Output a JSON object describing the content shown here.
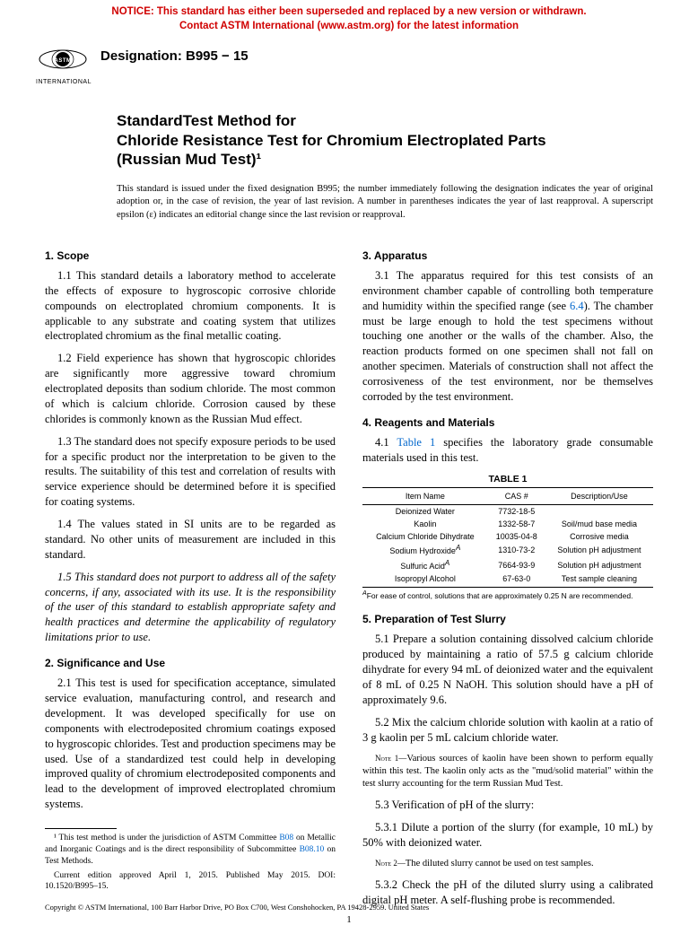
{
  "notice": {
    "line1": "NOTICE: This standard has either been superseded and replaced by a new version or withdrawn.",
    "line2": "Contact ASTM International (www.astm.org) for the latest information"
  },
  "logo_text": "INTERNATIONAL",
  "designation": "Designation: B995 − 15",
  "title": {
    "top": "StandardTest Method for",
    "main": "Chloride Resistance Test for Chromium Electroplated Parts",
    "sub": "(Russian Mud Test)¹"
  },
  "issuance": "This standard is issued under the fixed designation B995; the number immediately following the designation indicates the year of original adoption or, in the case of revision, the year of last revision. A number in parentheses indicates the year of last reapproval. A superscript epsilon (ε) indicates an editorial change since the last revision or reapproval.",
  "s1": {
    "h": "1. Scope",
    "p1": "1.1 This standard details a laboratory method to accelerate the effects of exposure to hygroscopic corrosive chloride compounds on electroplated chromium components. It is applicable to any substrate and coating system that utilizes electroplated chromium as the final metallic coating.",
    "p2": "1.2 Field experience has shown that hygroscopic chlorides are significantly more aggressive toward chromium electroplated deposits than sodium chloride. The most common of which is calcium chloride. Corrosion caused by these chlorides is commonly known as the Russian Mud effect.",
    "p3": "1.3 The standard does not specify exposure periods to be used for a specific product nor the interpretation to be given to the results. The suitability of this test and correlation of results with service experience should be determined before it is specified for coating systems.",
    "p4": "1.4 The values stated in SI units are to be regarded as standard. No other units of measurement are included in this standard.",
    "p5": "1.5 This standard does not purport to address all of the safety concerns, if any, associated with its use. It is the responsibility of the user of this standard to establish appropriate safety and health practices and determine the applicability of regulatory limitations prior to use."
  },
  "s2": {
    "h": "2. Significance and Use",
    "p1": "2.1 This test is used for specification acceptance, simulated service evaluation, manufacturing control, and research and development. It was developed specifically for use on components with electrodeposited chromium coatings exposed to hygroscopic chlorides. Test and production specimens may be used. Use of a standardized test could help in developing improved quality of chromium electrodeposited components and lead to the development of improved electroplated chromium systems."
  },
  "s3": {
    "h": "3. Apparatus",
    "p1_a": "3.1 The apparatus required for this test consists of an environment chamber capable of controlling both temperature and humidity within the specified range (see ",
    "p1_ref": "6.4",
    "p1_b": "). The chamber must be large enough to hold the test specimens without touching one another or the walls of the chamber. Also, the reaction products formed on one specimen shall not fall on another specimen. Materials of construction shall not affect the corrosiveness of the test environment, nor be themselves corroded by the test environment."
  },
  "s4": {
    "h": "4. Reagents and Materials",
    "p1_a": "4.1 ",
    "p1_ref": "Table 1",
    "p1_b": " specifies the laboratory grade consumable materials used in this test.",
    "table_title": "TABLE 1",
    "cols": [
      "Item Name",
      "CAS #",
      "Description/Use"
    ],
    "rows": [
      [
        "Deionized Water",
        "7732-18-5",
        ""
      ],
      [
        "Kaolin",
        "1332-58-7",
        "Soil/mud base media"
      ],
      [
        "Calcium Chloride Dihydrate",
        "10035-04-8",
        "Corrosive media"
      ],
      [
        "Sodium Hydroxide",
        "1310-73-2",
        "Solution pH adjustment"
      ],
      [
        "Sulfuric Acid",
        "7664-93-9",
        "Solution pH adjustment"
      ],
      [
        "Isopropyl Alcohol",
        "67-63-0",
        "Test sample cleaning"
      ]
    ],
    "row_sup": {
      "3": "A",
      "4": "A"
    },
    "footnote": "For ease of control, solutions that are approximately 0.25 N are recommended."
  },
  "s5": {
    "h": "5. Preparation of Test Slurry",
    "p1": "5.1 Prepare a solution containing dissolved calcium chloride produced by maintaining a ratio of 57.5 g calcium chloride dihydrate for every 94 mL of deionized water and the equivalent of 8 mL of 0.25 N NaOH. This solution should have a pH of approximately 9.6.",
    "p2": "5.2 Mix the calcium chloride solution with kaolin at a ratio of 3 g kaolin per 5 mL calcium chloride water.",
    "n1h": "Note 1—",
    "n1": "Various sources of kaolin have been shown to perform equally within this test. The kaolin only acts as the \"mud/solid material\" within the test slurry accounting for the term Russian Mud Test.",
    "p3": "5.3 Verification of pH of the slurry:",
    "p4": "5.3.1 Dilute a portion of the slurry (for example, 10 mL) by 50% with deionized water.",
    "n2h": "Note 2—",
    "n2": "The diluted slurry cannot be used on test samples.",
    "p5": "5.3.2 Check the pH of the diluted slurry using a calibrated digital pH meter. A self-flushing probe is recommended."
  },
  "footnotes": {
    "f1_a": "¹ This test method is under the jurisdiction of ASTM Committee ",
    "f1_ref1": "B08",
    "f1_b": " on Metallic and Inorganic Coatings and is the direct responsibility of Subcommittee ",
    "f1_ref2": "B08.10",
    "f1_c": " on Test Methods.",
    "f2": "Current edition approved April 1, 2015. Published May 2015. DOI: 10.1520/B995–15."
  },
  "copyright": "Copyright © ASTM International, 100 Barr Harbor Drive, PO Box C700, West Conshohocken, PA 19428-2959. United States",
  "pagenum": "1"
}
